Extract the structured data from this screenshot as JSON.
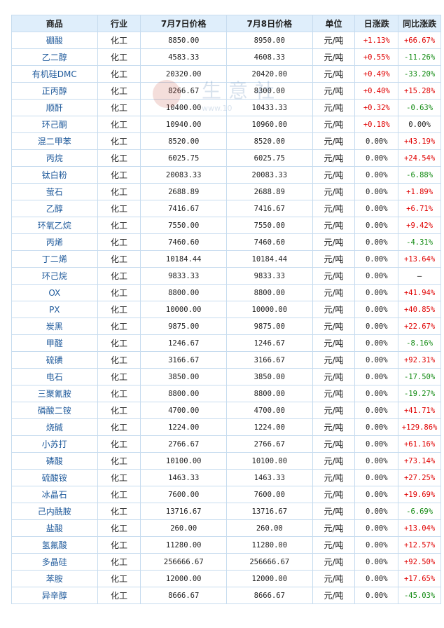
{
  "columns": [
    "商品",
    "行业",
    "7月7日价格",
    "7月8日价格",
    "单位",
    "日涨跌",
    "同比涨跌"
  ],
  "watermark": {
    "text": "生意社",
    "url": "www.10"
  },
  "rows": [
    {
      "name": "硼酸",
      "industry": "化工",
      "p1": "8850.00",
      "p2": "8950.00",
      "unit": "元/吨",
      "day": "+1.13%",
      "day_dir": "up",
      "yoy": "+66.67%",
      "yoy_dir": "up"
    },
    {
      "name": "乙二醇",
      "industry": "化工",
      "p1": "4583.33",
      "p2": "4608.33",
      "unit": "元/吨",
      "day": "+0.55%",
      "day_dir": "up",
      "yoy": "-11.26%",
      "yoy_dir": "down"
    },
    {
      "name": "有机硅DMC",
      "industry": "化工",
      "p1": "20320.00",
      "p2": "20420.00",
      "unit": "元/吨",
      "day": "+0.49%",
      "day_dir": "up",
      "yoy": "-33.20%",
      "yoy_dir": "down"
    },
    {
      "name": "正丙醇",
      "industry": "化工",
      "p1": "8266.67",
      "p2": "8300.00",
      "unit": "元/吨",
      "day": "+0.40%",
      "day_dir": "up",
      "yoy": "+15.28%",
      "yoy_dir": "up"
    },
    {
      "name": "顺酐",
      "industry": "化工",
      "p1": "10400.00",
      "p2": "10433.33",
      "unit": "元/吨",
      "day": "+0.32%",
      "day_dir": "up",
      "yoy": "-0.63%",
      "yoy_dir": "down"
    },
    {
      "name": "环己酮",
      "industry": "化工",
      "p1": "10940.00",
      "p2": "10960.00",
      "unit": "元/吨",
      "day": "+0.18%",
      "day_dir": "up",
      "yoy": "0.00%",
      "yoy_dir": "flat"
    },
    {
      "name": "混二甲苯",
      "industry": "化工",
      "p1": "8520.00",
      "p2": "8520.00",
      "unit": "元/吨",
      "day": "0.00%",
      "day_dir": "flat",
      "yoy": "+43.19%",
      "yoy_dir": "up"
    },
    {
      "name": "丙烷",
      "industry": "化工",
      "p1": "6025.75",
      "p2": "6025.75",
      "unit": "元/吨",
      "day": "0.00%",
      "day_dir": "flat",
      "yoy": "+24.54%",
      "yoy_dir": "up"
    },
    {
      "name": "钛白粉",
      "industry": "化工",
      "p1": "20083.33",
      "p2": "20083.33",
      "unit": "元/吨",
      "day": "0.00%",
      "day_dir": "flat",
      "yoy": "-6.88%",
      "yoy_dir": "down"
    },
    {
      "name": "萤石",
      "industry": "化工",
      "p1": "2688.89",
      "p2": "2688.89",
      "unit": "元/吨",
      "day": "0.00%",
      "day_dir": "flat",
      "yoy": "+1.89%",
      "yoy_dir": "up"
    },
    {
      "name": "乙醇",
      "industry": "化工",
      "p1": "7416.67",
      "p2": "7416.67",
      "unit": "元/吨",
      "day": "0.00%",
      "day_dir": "flat",
      "yoy": "+6.71%",
      "yoy_dir": "up"
    },
    {
      "name": "环氧乙烷",
      "industry": "化工",
      "p1": "7550.00",
      "p2": "7550.00",
      "unit": "元/吨",
      "day": "0.00%",
      "day_dir": "flat",
      "yoy": "+9.42%",
      "yoy_dir": "up"
    },
    {
      "name": "丙烯",
      "industry": "化工",
      "p1": "7460.60",
      "p2": "7460.60",
      "unit": "元/吨",
      "day": "0.00%",
      "day_dir": "flat",
      "yoy": "-4.31%",
      "yoy_dir": "down"
    },
    {
      "name": "丁二烯",
      "industry": "化工",
      "p1": "10184.44",
      "p2": "10184.44",
      "unit": "元/吨",
      "day": "0.00%",
      "day_dir": "flat",
      "yoy": "+13.64%",
      "yoy_dir": "up"
    },
    {
      "name": "环己烷",
      "industry": "化工",
      "p1": "9833.33",
      "p2": "9833.33",
      "unit": "元/吨",
      "day": "0.00%",
      "day_dir": "flat",
      "yoy": "—",
      "yoy_dir": "flat"
    },
    {
      "name": "OX",
      "industry": "化工",
      "p1": "8800.00",
      "p2": "8800.00",
      "unit": "元/吨",
      "day": "0.00%",
      "day_dir": "flat",
      "yoy": "+41.94%",
      "yoy_dir": "up"
    },
    {
      "name": "PX",
      "industry": "化工",
      "p1": "10000.00",
      "p2": "10000.00",
      "unit": "元/吨",
      "day": "0.00%",
      "day_dir": "flat",
      "yoy": "+40.85%",
      "yoy_dir": "up"
    },
    {
      "name": "炭黑",
      "industry": "化工",
      "p1": "9875.00",
      "p2": "9875.00",
      "unit": "元/吨",
      "day": "0.00%",
      "day_dir": "flat",
      "yoy": "+22.67%",
      "yoy_dir": "up"
    },
    {
      "name": "甲醛",
      "industry": "化工",
      "p1": "1246.67",
      "p2": "1246.67",
      "unit": "元/吨",
      "day": "0.00%",
      "day_dir": "flat",
      "yoy": "-8.16%",
      "yoy_dir": "down"
    },
    {
      "name": "硫磺",
      "industry": "化工",
      "p1": "3166.67",
      "p2": "3166.67",
      "unit": "元/吨",
      "day": "0.00%",
      "day_dir": "flat",
      "yoy": "+92.31%",
      "yoy_dir": "up"
    },
    {
      "name": "电石",
      "industry": "化工",
      "p1": "3850.00",
      "p2": "3850.00",
      "unit": "元/吨",
      "day": "0.00%",
      "day_dir": "flat",
      "yoy": "-17.50%",
      "yoy_dir": "down"
    },
    {
      "name": "三聚氰胺",
      "industry": "化工",
      "p1": "8800.00",
      "p2": "8800.00",
      "unit": "元/吨",
      "day": "0.00%",
      "day_dir": "flat",
      "yoy": "-19.27%",
      "yoy_dir": "down"
    },
    {
      "name": "磷酸二铵",
      "industry": "化工",
      "p1": "4700.00",
      "p2": "4700.00",
      "unit": "元/吨",
      "day": "0.00%",
      "day_dir": "flat",
      "yoy": "+41.71%",
      "yoy_dir": "up"
    },
    {
      "name": "烧碱",
      "industry": "化工",
      "p1": "1224.00",
      "p2": "1224.00",
      "unit": "元/吨",
      "day": "0.00%",
      "day_dir": "flat",
      "yoy": "+129.86%",
      "yoy_dir": "up"
    },
    {
      "name": "小苏打",
      "industry": "化工",
      "p1": "2766.67",
      "p2": "2766.67",
      "unit": "元/吨",
      "day": "0.00%",
      "day_dir": "flat",
      "yoy": "+61.16%",
      "yoy_dir": "up"
    },
    {
      "name": "磷酸",
      "industry": "化工",
      "p1": "10100.00",
      "p2": "10100.00",
      "unit": "元/吨",
      "day": "0.00%",
      "day_dir": "flat",
      "yoy": "+73.14%",
      "yoy_dir": "up"
    },
    {
      "name": "硫酸铵",
      "industry": "化工",
      "p1": "1463.33",
      "p2": "1463.33",
      "unit": "元/吨",
      "day": "0.00%",
      "day_dir": "flat",
      "yoy": "+27.25%",
      "yoy_dir": "up"
    },
    {
      "name": "冰晶石",
      "industry": "化工",
      "p1": "7600.00",
      "p2": "7600.00",
      "unit": "元/吨",
      "day": "0.00%",
      "day_dir": "flat",
      "yoy": "+19.69%",
      "yoy_dir": "up"
    },
    {
      "name": "己内酰胺",
      "industry": "化工",
      "p1": "13716.67",
      "p2": "13716.67",
      "unit": "元/吨",
      "day": "0.00%",
      "day_dir": "flat",
      "yoy": "-6.69%",
      "yoy_dir": "down"
    },
    {
      "name": "盐酸",
      "industry": "化工",
      "p1": "260.00",
      "p2": "260.00",
      "unit": "元/吨",
      "day": "0.00%",
      "day_dir": "flat",
      "yoy": "+13.04%",
      "yoy_dir": "up"
    },
    {
      "name": "氢氟酸",
      "industry": "化工",
      "p1": "11280.00",
      "p2": "11280.00",
      "unit": "元/吨",
      "day": "0.00%",
      "day_dir": "flat",
      "yoy": "+12.57%",
      "yoy_dir": "up"
    },
    {
      "name": "多晶硅",
      "industry": "化工",
      "p1": "256666.67",
      "p2": "256666.67",
      "unit": "元/吨",
      "day": "0.00%",
      "day_dir": "flat",
      "yoy": "+92.50%",
      "yoy_dir": "up"
    },
    {
      "name": "苯胺",
      "industry": "化工",
      "p1": "12000.00",
      "p2": "12000.00",
      "unit": "元/吨",
      "day": "0.00%",
      "day_dir": "flat",
      "yoy": "+17.65%",
      "yoy_dir": "up"
    },
    {
      "name": "异辛醇",
      "industry": "化工",
      "p1": "8666.67",
      "p2": "8666.67",
      "unit": "元/吨",
      "day": "0.00%",
      "day_dir": "flat",
      "yoy": "-45.03%",
      "yoy_dir": "down"
    }
  ]
}
